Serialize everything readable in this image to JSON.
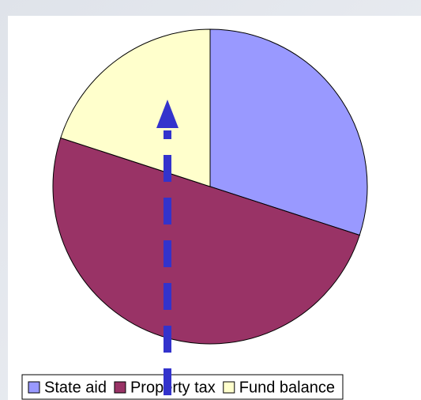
{
  "chart_data": {
    "type": "pie",
    "categories": [
      "State aid",
      "Property tax",
      "Fund balance"
    ],
    "values": [
      30,
      50,
      20
    ],
    "colors": [
      "#9999ff",
      "#993366",
      "#ffffcc"
    ],
    "legend": "bottom"
  }
}
